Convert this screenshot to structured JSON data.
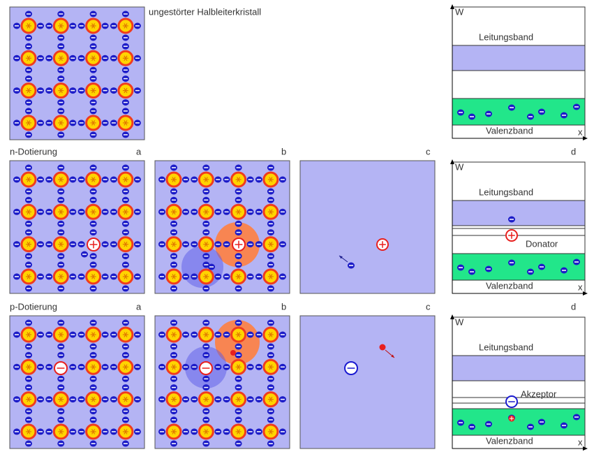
{
  "caption": "ungestörter Halbleiterkristall",
  "top_band": {
    "axis_y": "W",
    "upper": "Leitungsband",
    "lower": "Valenzband",
    "axis_x": "x"
  },
  "rows": [
    {
      "label": "n-Dotierung",
      "panels": [
        "a",
        "b",
        "c",
        "d"
      ],
      "band": {
        "axis_y": "W",
        "upper": "Leitungsband",
        "level": "Donator",
        "lower": "Valenzband",
        "axis_x": "x"
      }
    },
    {
      "label": "p-Dotierung",
      "panels": [
        "a",
        "b",
        "c",
        "d"
      ],
      "band": {
        "axis_y": "W",
        "upper": "Leitungsband",
        "level": "Akzeptor",
        "lower": "Valenzband",
        "axis_x": "x"
      }
    }
  ]
}
